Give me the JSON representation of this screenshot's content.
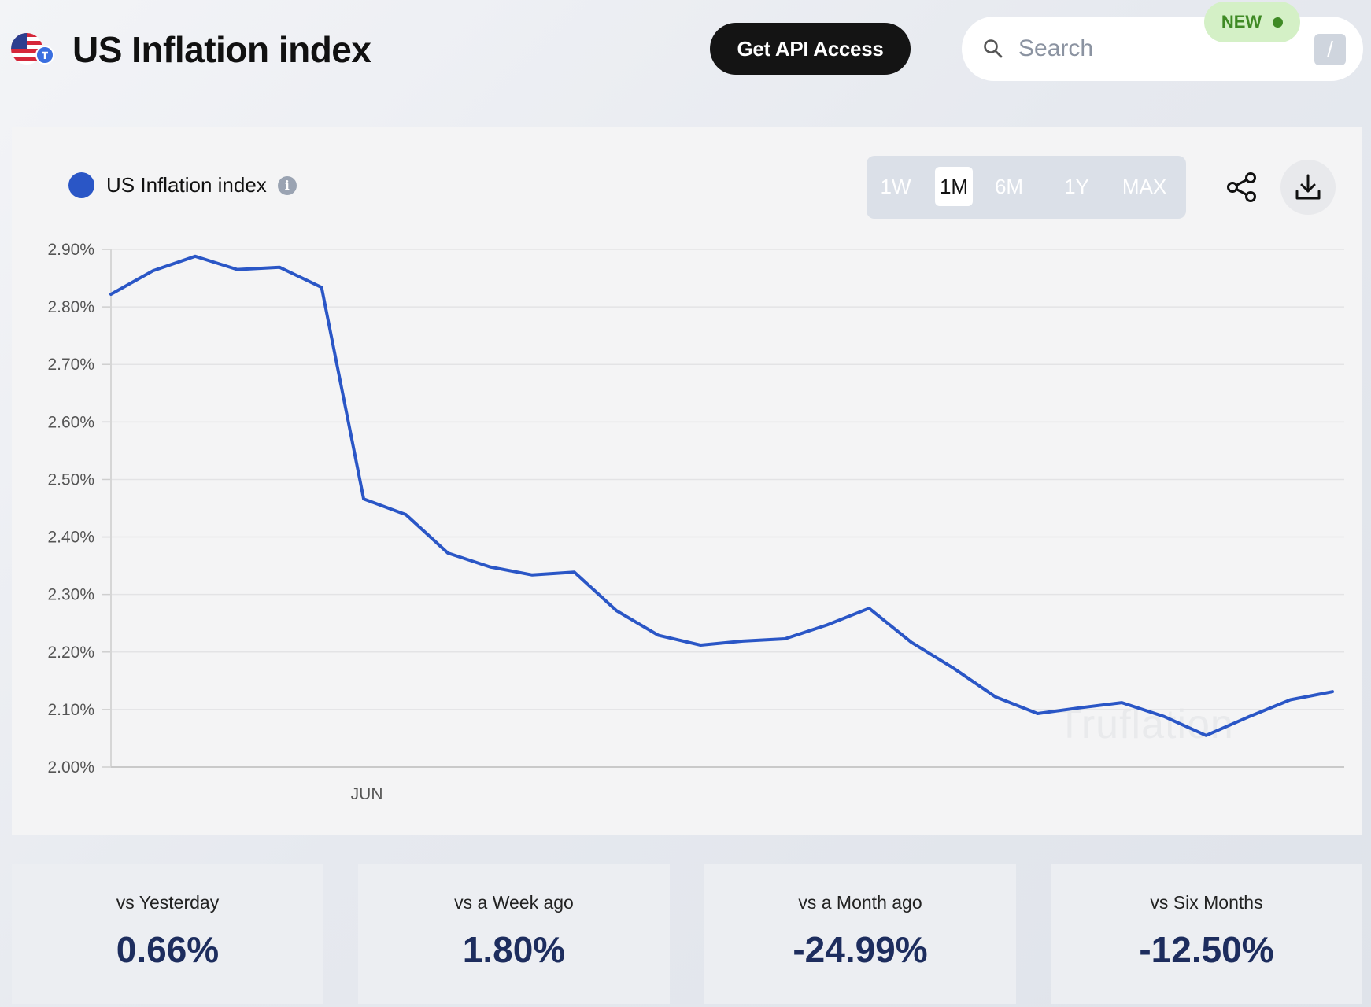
{
  "header": {
    "title": "US Inflation index",
    "api_button_label": "Get API Access",
    "search_placeholder": "Search",
    "search_shortcut": "/",
    "new_badge": "NEW"
  },
  "chart": {
    "legend_label": "US Inflation index",
    "ranges": [
      {
        "label": "1W",
        "active": false
      },
      {
        "label": "1M",
        "active": true
      },
      {
        "label": "6M",
        "active": false
      },
      {
        "label": "1Y",
        "active": false
      },
      {
        "label": "MAX",
        "active": false
      }
    ],
    "watermark": "Truflation",
    "line_color": "#2a56c6"
  },
  "chart_data": {
    "type": "line",
    "ylim": [
      2.0,
      2.9
    ],
    "yticks": [
      "2.00%",
      "2.10%",
      "2.20%",
      "2.30%",
      "2.40%",
      "2.50%",
      "2.60%",
      "2.70%",
      "2.80%",
      "2.90%"
    ],
    "xtick_labels": [
      {
        "label": "JUN",
        "index": 6
      }
    ],
    "grid": true,
    "series": [
      {
        "values": [
          2.822,
          2.863,
          2.888,
          2.865,
          2.869,
          2.834,
          2.466,
          2.439,
          2.372,
          2.348,
          2.334,
          2.339,
          2.272,
          2.229,
          2.212,
          2.219,
          2.223,
          2.247,
          2.276,
          2.217,
          2.172,
          2.122,
          2.093,
          2.103,
          2.112,
          2.088,
          2.055,
          2.087,
          2.117,
          2.131
        ]
      }
    ]
  },
  "stats": [
    {
      "label": "vs Yesterday",
      "value": "0.66%"
    },
    {
      "label": "vs a Week ago",
      "value": "1.80%"
    },
    {
      "label": "vs a Month ago",
      "value": "-24.99%"
    },
    {
      "label": "vs Six Months",
      "value": "-12.50%"
    }
  ]
}
